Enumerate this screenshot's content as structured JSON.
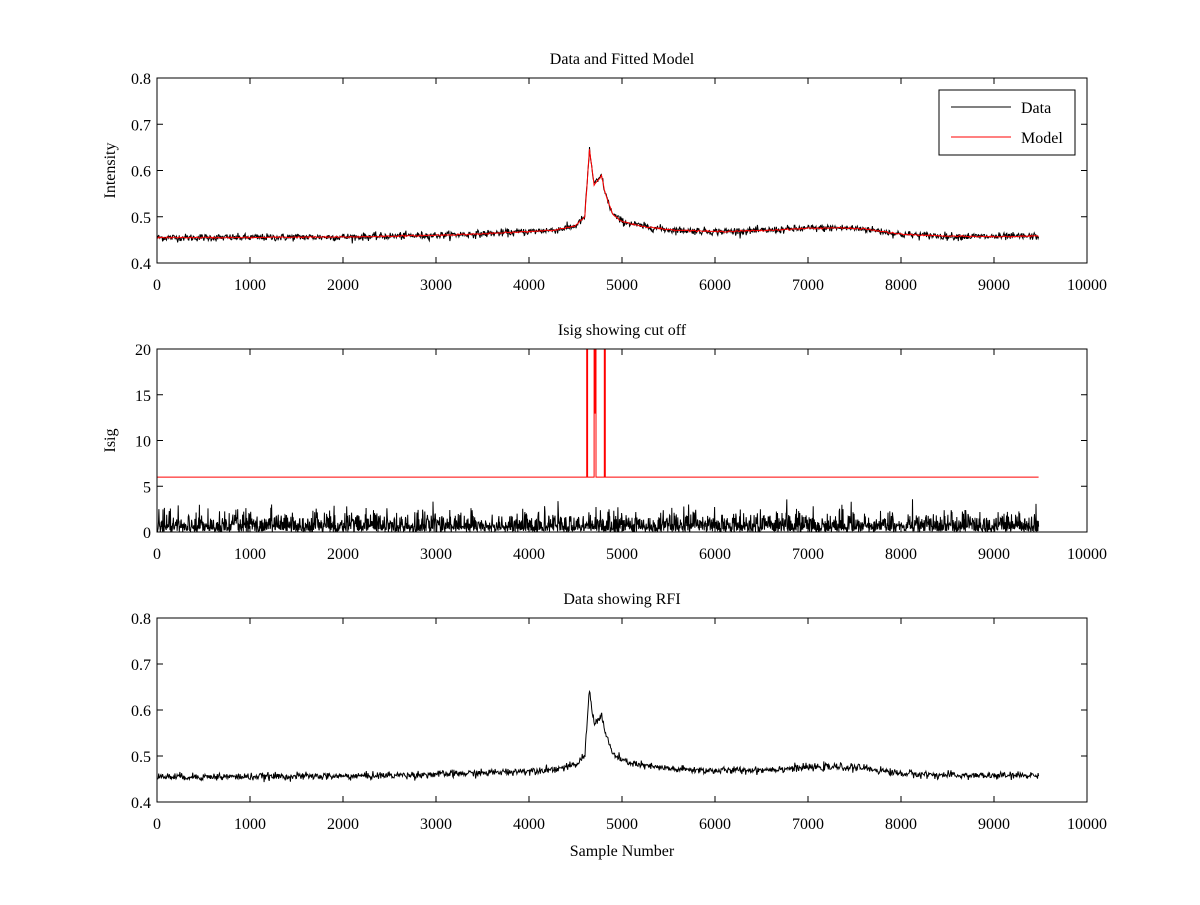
{
  "colors": {
    "data": "#000000",
    "model": "#ff0000",
    "background": "#ffffff"
  },
  "chart_data": [
    {
      "type": "line",
      "title": "Data and Fitted Model",
      "xlabel": "",
      "ylabel": "Intensity",
      "xlim": [
        0,
        10000
      ],
      "ylim": [
        0.4,
        0.8
      ],
      "xticks": [
        0,
        1000,
        2000,
        3000,
        4000,
        5000,
        6000,
        7000,
        8000,
        9000,
        10000
      ],
      "yticks": [
        0.4,
        0.5,
        0.6,
        0.7,
        0.8
      ],
      "legend": {
        "position": "top-right",
        "entries": [
          "Data",
          "Model"
        ]
      },
      "series": [
        {
          "name": "Data",
          "color": "#000000",
          "kind": "noisy",
          "noise": 0.004,
          "x": [
            0,
            500,
            1000,
            1500,
            2000,
            2500,
            3000,
            3500,
            4000,
            4300,
            4500,
            4600,
            4650,
            4700,
            4750,
            4780,
            4820,
            4900,
            5000,
            5200,
            5500,
            6000,
            6500,
            7000,
            7300,
            7600,
            7800,
            8000,
            8500,
            9000,
            9480
          ],
          "y": [
            0.455,
            0.455,
            0.455,
            0.456,
            0.456,
            0.458,
            0.46,
            0.463,
            0.468,
            0.472,
            0.48,
            0.5,
            0.645,
            0.57,
            0.58,
            0.59,
            0.55,
            0.505,
            0.49,
            0.48,
            0.472,
            0.468,
            0.47,
            0.475,
            0.476,
            0.474,
            0.468,
            0.462,
            0.458,
            0.457,
            0.458
          ]
        },
        {
          "name": "Model",
          "color": "#ff0000",
          "kind": "smooth",
          "x": [
            0,
            500,
            1000,
            1500,
            2000,
            2500,
            3000,
            3500,
            4000,
            4300,
            4500,
            4600,
            4650,
            4700,
            4750,
            4780,
            4820,
            4900,
            5000,
            5200,
            5500,
            6000,
            6500,
            7000,
            7300,
            7600,
            7800,
            8000,
            8500,
            9000,
            9480
          ],
          "y": [
            0.455,
            0.455,
            0.455,
            0.456,
            0.456,
            0.458,
            0.46,
            0.463,
            0.468,
            0.472,
            0.48,
            0.5,
            0.645,
            0.57,
            0.58,
            0.59,
            0.55,
            0.505,
            0.49,
            0.48,
            0.472,
            0.468,
            0.47,
            0.475,
            0.476,
            0.474,
            0.468,
            0.462,
            0.458,
            0.457,
            0.458
          ]
        }
      ]
    },
    {
      "type": "line",
      "title": "Isig showing cut off",
      "xlabel": "",
      "ylabel": "Isig",
      "xlim": [
        0,
        10000
      ],
      "ylim": [
        0,
        20
      ],
      "xticks": [
        0,
        1000,
        2000,
        3000,
        4000,
        5000,
        6000,
        7000,
        8000,
        9000,
        10000
      ],
      "yticks": [
        0,
        5,
        10,
        15,
        20
      ],
      "series": [
        {
          "name": "Isig",
          "color": "#000000",
          "kind": "abs-noise",
          "sigma": 1.0,
          "x": [
            0,
            9480
          ]
        },
        {
          "name": "Cut off",
          "color": "#ff0000",
          "kind": "step",
          "x": [
            0,
            4620,
            4620,
            4630,
            4630,
            4700,
            4700,
            4705,
            4705,
            4712,
            4712,
            4720,
            4720,
            4810,
            4810,
            4820,
            4820,
            9480
          ],
          "y": [
            6,
            6,
            20,
            20,
            6,
            6,
            20,
            20,
            13,
            13,
            20,
            20,
            6,
            6,
            20,
            20,
            6,
            6
          ]
        }
      ]
    },
    {
      "type": "line",
      "title": "Data showing RFI",
      "xlabel": "Sample Number",
      "ylabel": "",
      "xlim": [
        0,
        10000
      ],
      "ylim": [
        0.4,
        0.8
      ],
      "xticks": [
        0,
        1000,
        2000,
        3000,
        4000,
        5000,
        6000,
        7000,
        8000,
        9000,
        10000
      ],
      "yticks": [
        0.4,
        0.5,
        0.6,
        0.7,
        0.8
      ],
      "series": [
        {
          "name": "Data",
          "color": "#000000",
          "kind": "noisy",
          "noise": 0.004,
          "x": [
            0,
            500,
            1000,
            1500,
            2000,
            2500,
            3000,
            3500,
            4000,
            4300,
            4500,
            4600,
            4650,
            4700,
            4750,
            4780,
            4820,
            4900,
            5000,
            5200,
            5500,
            6000,
            6500,
            7000,
            7300,
            7600,
            7800,
            8000,
            8500,
            9000,
            9480
          ],
          "y": [
            0.455,
            0.455,
            0.455,
            0.456,
            0.456,
            0.458,
            0.46,
            0.463,
            0.468,
            0.472,
            0.48,
            0.5,
            0.645,
            0.57,
            0.58,
            0.59,
            0.55,
            0.505,
            0.49,
            0.48,
            0.472,
            0.468,
            0.47,
            0.475,
            0.476,
            0.474,
            0.468,
            0.462,
            0.458,
            0.457,
            0.458
          ]
        }
      ]
    }
  ]
}
